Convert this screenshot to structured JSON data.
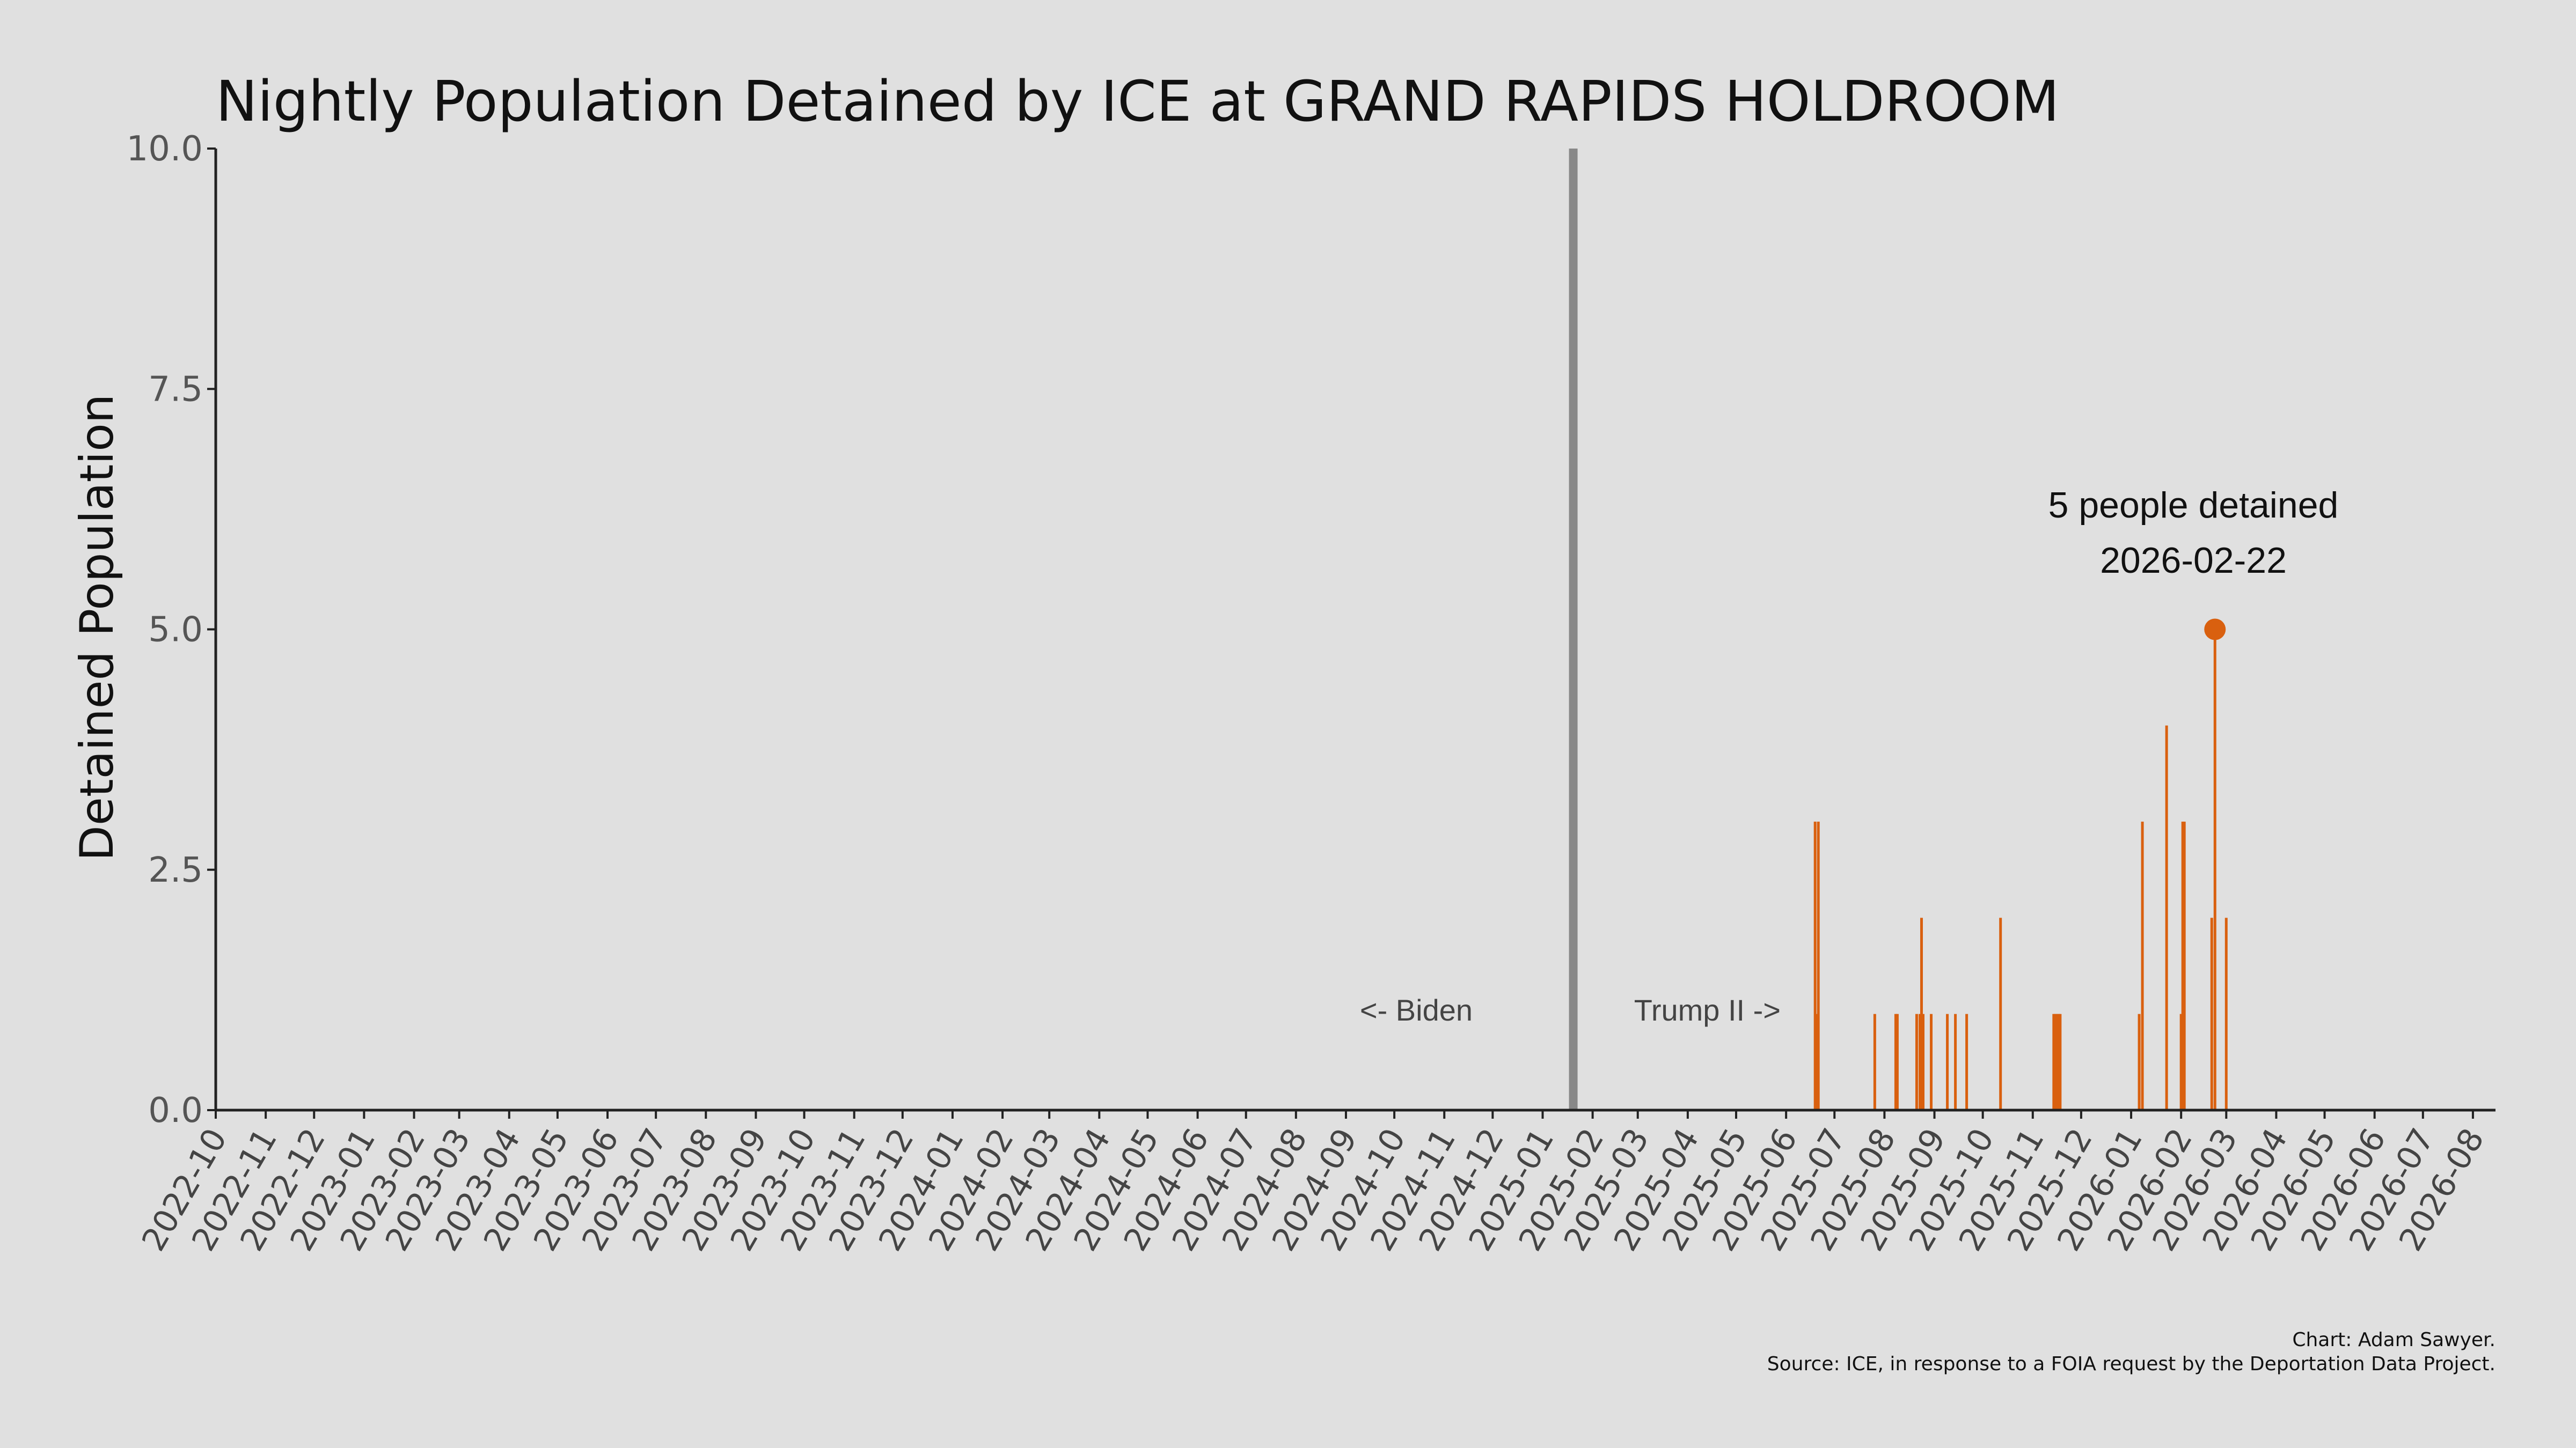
{
  "chart_data": {
    "type": "bar",
    "title": "Nightly Population Detained by ICE at GRAND RAPIDS HOLDROOM",
    "ylabel": "Detained Population",
    "xlabel": "",
    "ylim": [
      0,
      10
    ],
    "yticks": [
      "0.0",
      "2.5",
      "5.0",
      "7.5",
      "10.0"
    ],
    "xlim": [
      "2022-10-01",
      "2026-08-15"
    ],
    "xticks": [
      "2022-10",
      "2022-11",
      "2022-12",
      "2023-01",
      "2023-02",
      "2023-03",
      "2023-04",
      "2023-05",
      "2023-06",
      "2023-07",
      "2023-08",
      "2023-09",
      "2023-10",
      "2023-11",
      "2023-12",
      "2024-01",
      "2024-02",
      "2024-03",
      "2024-04",
      "2024-05",
      "2024-06",
      "2024-07",
      "2024-08",
      "2024-09",
      "2024-10",
      "2024-11",
      "2024-12",
      "2025-01",
      "2025-02",
      "2025-03",
      "2025-04",
      "2025-05",
      "2025-06",
      "2025-07",
      "2025-08",
      "2025-09",
      "2025-10",
      "2025-11",
      "2025-12",
      "2026-01",
      "2026-02",
      "2026-03",
      "2026-04",
      "2026-05",
      "2026-06",
      "2026-07",
      "2026-08"
    ],
    "grid": false,
    "bar_color": "#d9600f",
    "divider": {
      "date": "2025-01-20",
      "color": "#888888"
    },
    "era_labels": {
      "left": "<- Biden",
      "right": "Trump II ->"
    },
    "peak": {
      "date": "2026-02-22",
      "value": 5,
      "label_line1": "5 people detained",
      "label_line2": "2026-02-22"
    },
    "credit_line1": "Chart: Adam Sawyer.",
    "credit_line2": "Source: ICE, in response to a FOIA request by the Deportation Data Project.",
    "points": [
      {
        "date": "2025-06-19",
        "value": 3
      },
      {
        "date": "2025-06-20",
        "value": 1
      },
      {
        "date": "2025-06-21",
        "value": 3
      },
      {
        "date": "2025-07-26",
        "value": 1
      },
      {
        "date": "2025-08-08",
        "value": 1
      },
      {
        "date": "2025-08-09",
        "value": 1
      },
      {
        "date": "2025-08-21",
        "value": 1
      },
      {
        "date": "2025-08-23",
        "value": 1
      },
      {
        "date": "2025-08-24",
        "value": 2
      },
      {
        "date": "2025-08-25",
        "value": 1
      },
      {
        "date": "2025-08-30",
        "value": 1
      },
      {
        "date": "2025-09-09",
        "value": 1
      },
      {
        "date": "2025-09-14",
        "value": 1
      },
      {
        "date": "2025-09-21",
        "value": 1
      },
      {
        "date": "2025-10-12",
        "value": 2
      },
      {
        "date": "2025-11-14",
        "value": 1
      },
      {
        "date": "2025-11-15",
        "value": 1
      },
      {
        "date": "2025-11-16",
        "value": 1
      },
      {
        "date": "2025-11-17",
        "value": 1
      },
      {
        "date": "2025-11-18",
        "value": 1
      },
      {
        "date": "2026-01-06",
        "value": 1
      },
      {
        "date": "2026-01-08",
        "value": 3
      },
      {
        "date": "2026-01-23",
        "value": 4
      },
      {
        "date": "2026-02-01",
        "value": 1
      },
      {
        "date": "2026-02-02",
        "value": 3
      },
      {
        "date": "2026-02-03",
        "value": 3
      },
      {
        "date": "2026-02-20",
        "value": 2
      },
      {
        "date": "2026-02-22",
        "value": 5
      },
      {
        "date": "2026-03-01",
        "value": 2
      }
    ]
  }
}
